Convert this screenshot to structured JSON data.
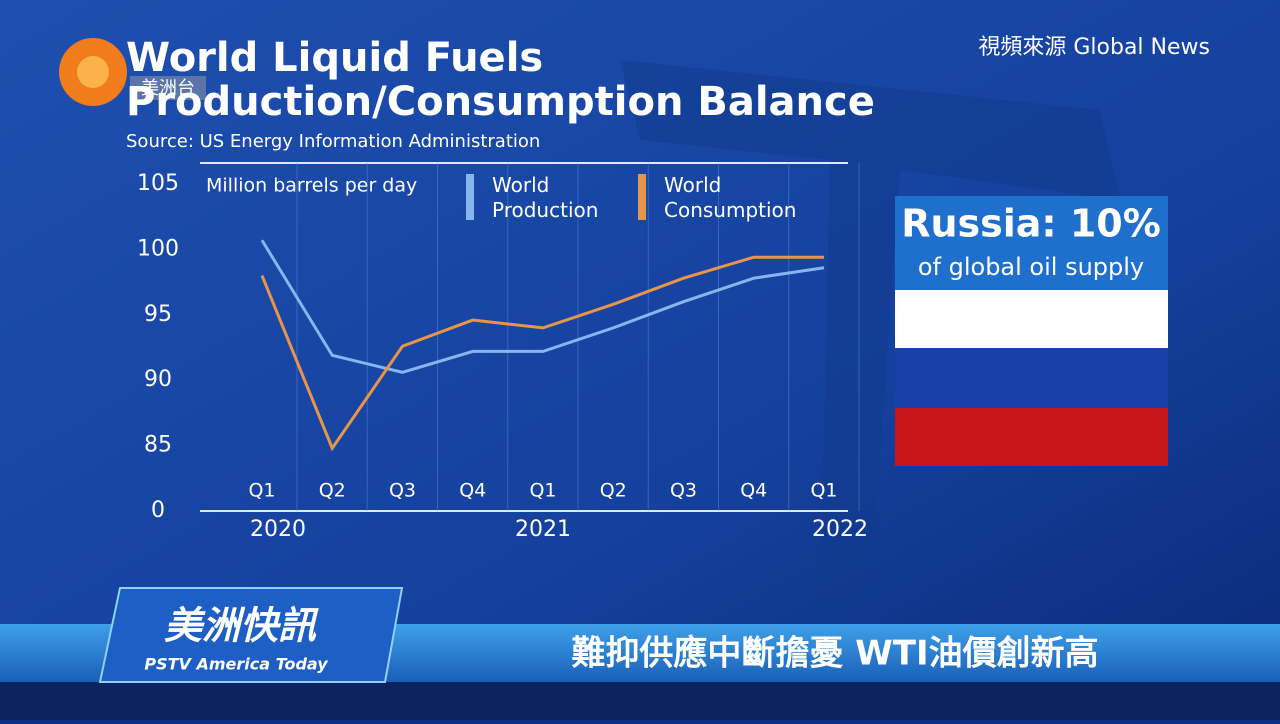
{
  "logo": {
    "channel": "美洲台"
  },
  "source_credit": "視頻來源 Global News",
  "chart_data": {
    "type": "line",
    "title": "World Liquid Fuels",
    "subtitle": "Production/Consumption Balance",
    "source": "Source: US Energy Information Administration",
    "y_axis_label": "Million barrels per day",
    "categories": [
      "Q1",
      "Q2",
      "Q3",
      "Q4",
      "Q1",
      "Q2",
      "Q3",
      "Q4",
      "Q1"
    ],
    "x_groups": [
      "2020",
      "2021",
      "2022"
    ],
    "series": [
      {
        "name": "World Production",
        "color": "#86b6ee",
        "values": [
          100.7,
          91.9,
          90.6,
          92.2,
          92.2,
          94.0,
          96.0,
          97.8,
          98.6
        ]
      },
      {
        "name": "World Consumption",
        "color": "#e8954a",
        "values": [
          98.0,
          84.8,
          92.6,
          94.6,
          94.0,
          95.8,
          97.8,
          99.4,
          99.4
        ]
      }
    ],
    "ylim": [
      80,
      105
    ],
    "yticks": [
      {
        "value": 80,
        "label": "0"
      },
      85,
      90,
      95,
      100,
      105
    ]
  },
  "callout": {
    "title": "Russia: 10%",
    "text": "of global oil supply"
  },
  "ticker": {
    "brand": "美洲快訊",
    "brand_sub": "PSTV America Today",
    "headline": "難抑供應中斷擔憂 WTI油價創新高"
  }
}
